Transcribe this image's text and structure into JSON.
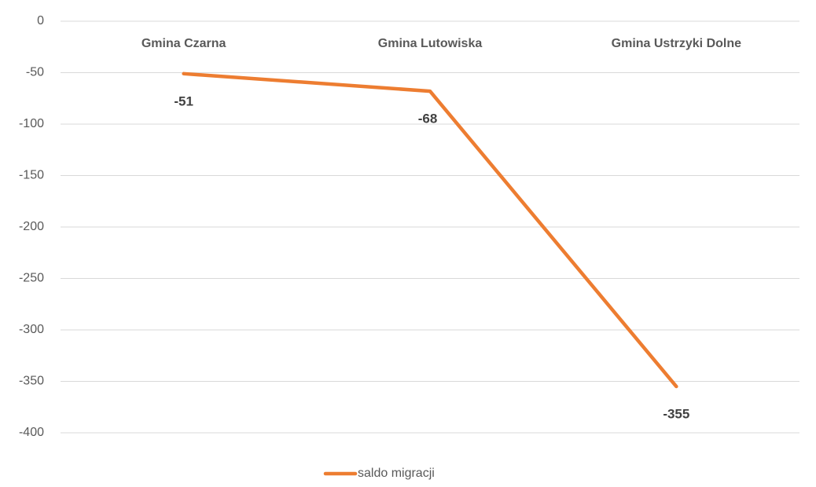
{
  "chart_data": {
    "type": "line",
    "categories": [
      "Gmina Czarna",
      "Gmina Lutowiska",
      "Gmina Ustrzyki Dolne"
    ],
    "series": [
      {
        "name": "saldo migracji",
        "color": "#ed7d31",
        "values": [
          -51,
          -68,
          -355
        ]
      }
    ],
    "ylim": [
      -400,
      0
    ],
    "yticks": [
      0,
      -50,
      -100,
      -150,
      -200,
      -250,
      -300,
      -350,
      -400
    ],
    "grid": true,
    "legend": "bottom"
  }
}
